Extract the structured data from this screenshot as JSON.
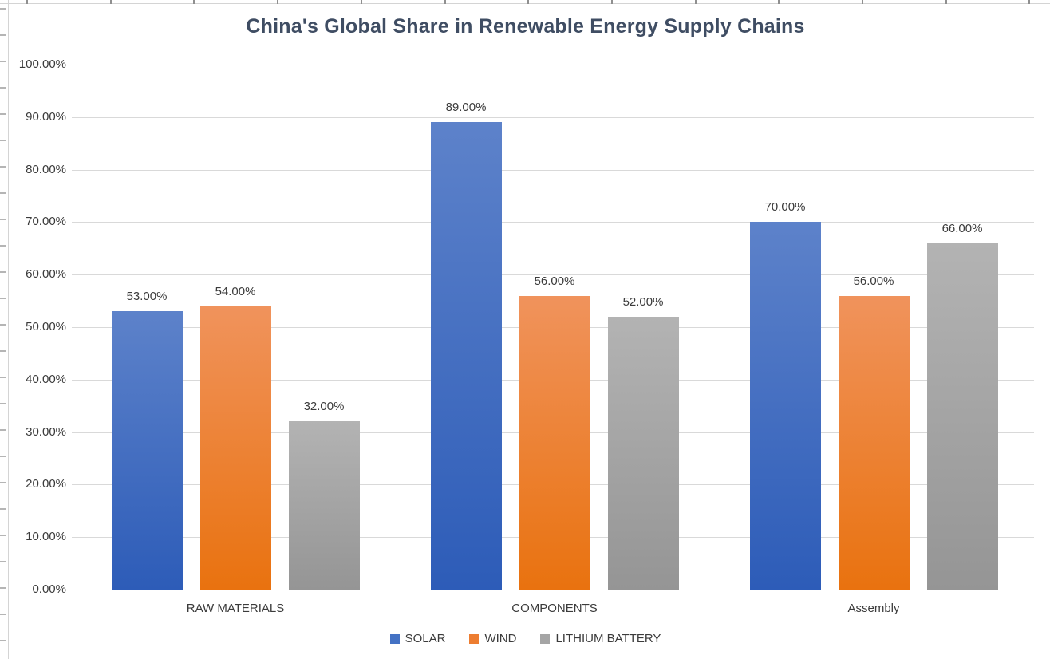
{
  "chart_data": {
    "type": "bar",
    "title": "China's Global Share in Renewable Energy Supply Chains",
    "categories": [
      "RAW MATERIALS",
      "COMPONENTS",
      "Assembly"
    ],
    "series": [
      {
        "name": "SOLAR",
        "values": [
          53,
          89,
          70
        ],
        "labels": [
          "53.00%",
          "89.00%",
          "70.00%"
        ],
        "marker": "#4472C4",
        "gradient": [
          "#5D82CA",
          "#2D5CB8"
        ]
      },
      {
        "name": "WIND",
        "values": [
          54,
          56,
          56
        ],
        "labels": [
          "54.00%",
          "56.00%",
          "56.00%"
        ],
        "marker": "#ED7D31",
        "gradient": [
          "#F0935C",
          "#E9720F"
        ]
      },
      {
        "name": "LITHIUM BATTERY",
        "values": [
          32,
          52,
          66
        ],
        "labels": [
          "32.00%",
          "52.00%",
          "66.00%"
        ],
        "marker": "#A5A5A5",
        "gradient": [
          "#B3B3B3",
          "#959595"
        ]
      }
    ],
    "y_axis": {
      "min": 0,
      "max": 100,
      "step": 10,
      "ticks": [
        "100.00%",
        "90.00%",
        "80.00%",
        "70.00%",
        "60.00%",
        "50.00%",
        "40.00%",
        "30.00%",
        "20.00%",
        "10.00%",
        "0.00%"
      ]
    },
    "xlabel": "",
    "ylabel": "",
    "grid": true,
    "legend_position": "bottom",
    "colors": {
      "title": "#3F4D63",
      "axis_text": "#3B3B3B",
      "gridline": "#D9D9D9",
      "baseline": "#C6C6C6",
      "background": "#FFFFFF"
    }
  }
}
